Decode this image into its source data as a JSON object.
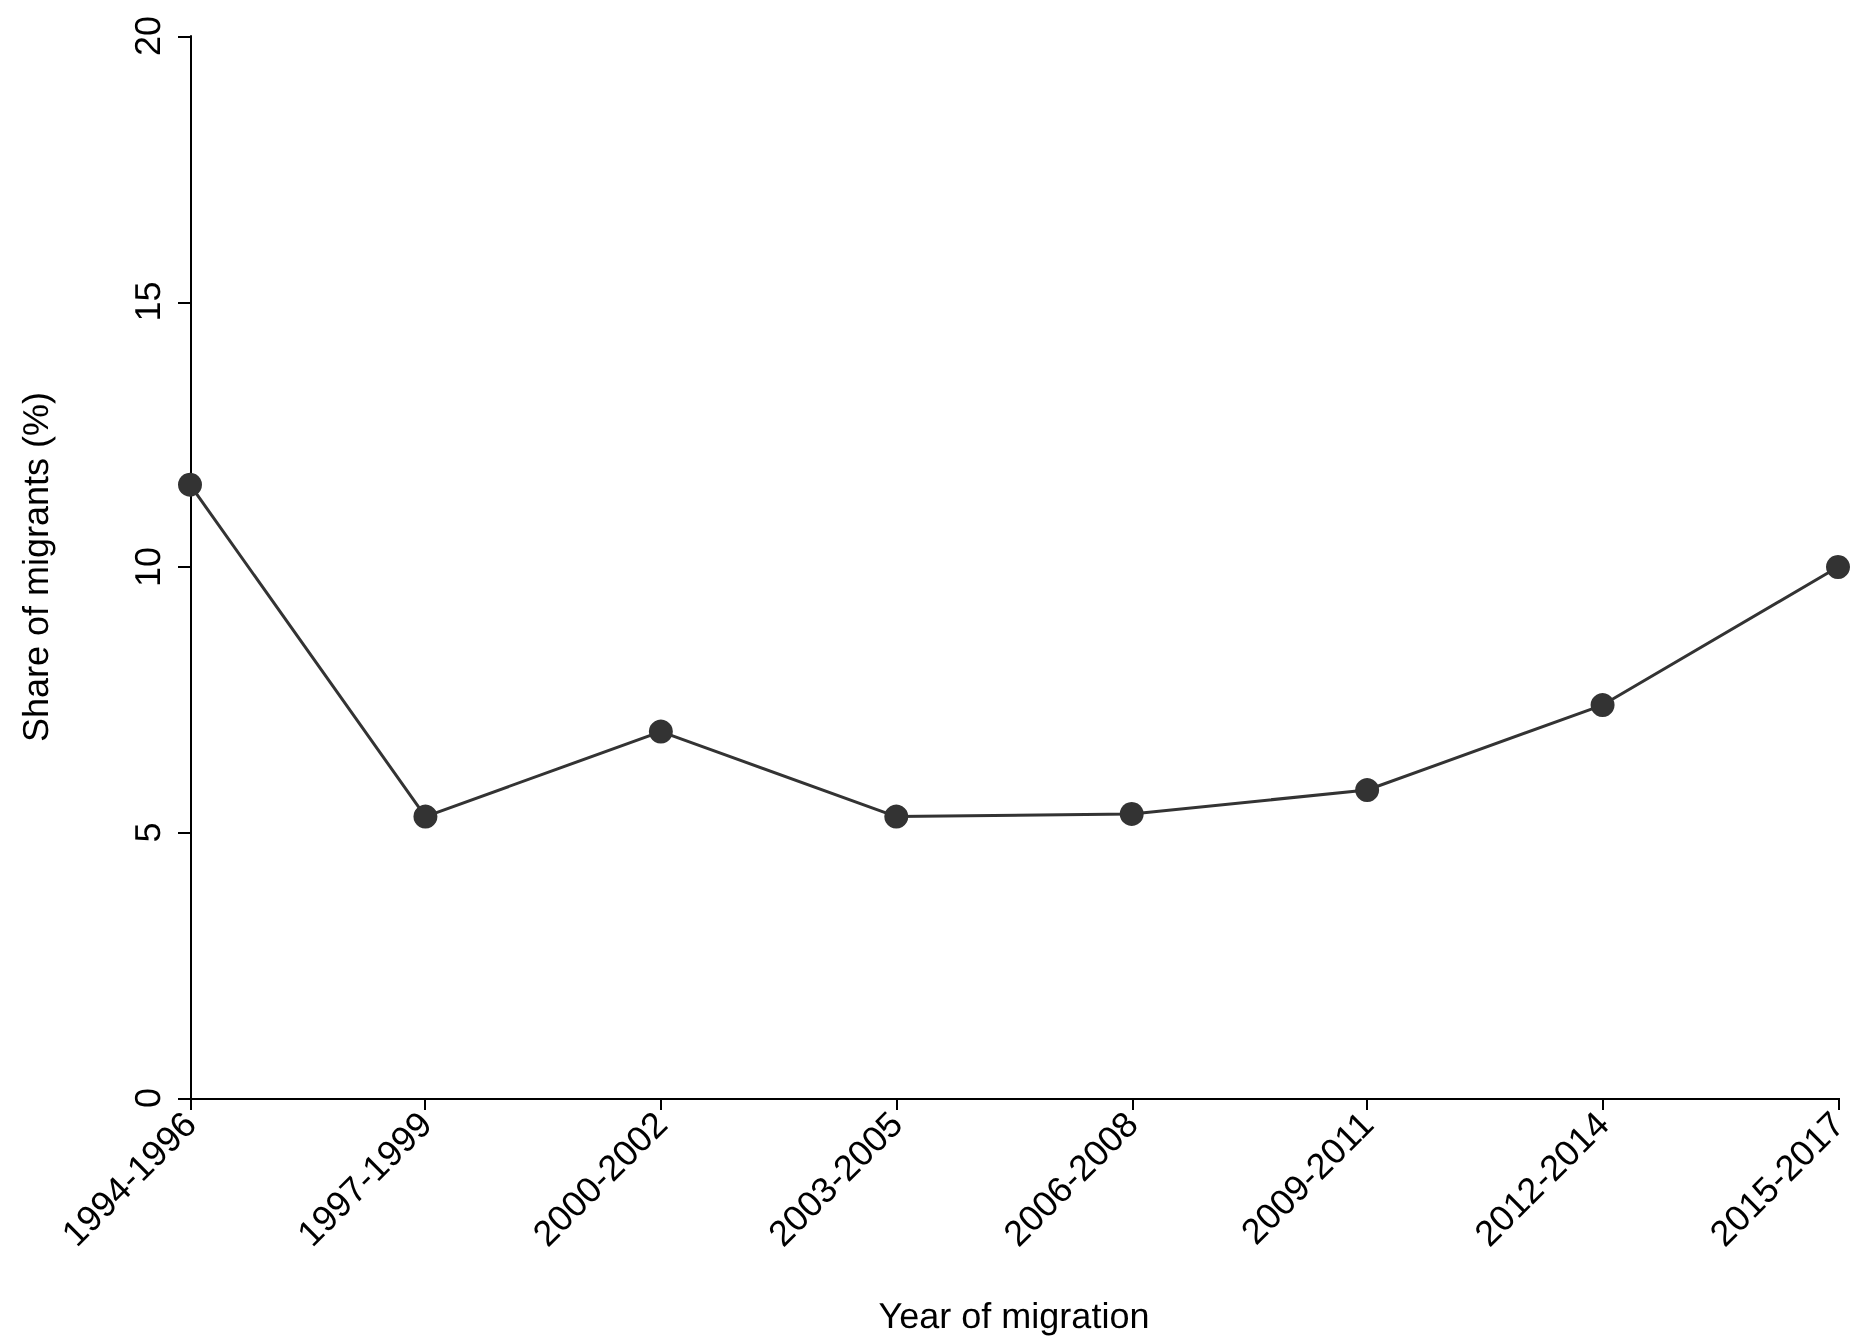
{
  "chart_data": {
    "type": "line",
    "xlabel": "Year of migration",
    "ylabel": "Share of migrants (%)",
    "categories": [
      "1994-1996",
      "1997-1999",
      "2000-2002",
      "2003-2005",
      "2006-2008",
      "2009-2011",
      "2012-2014",
      "2015-2017"
    ],
    "series": [
      {
        "color": "#333333",
        "values": [
          11.55,
          5.3,
          6.9,
          5.3,
          5.35,
          5.8,
          7.4,
          10.0
        ]
      }
    ],
    "ylim": [
      0,
      20
    ],
    "yticks": [
      0,
      5,
      10,
      15,
      20
    ],
    "grid": false,
    "marker": "circle",
    "line_style": "solid"
  }
}
